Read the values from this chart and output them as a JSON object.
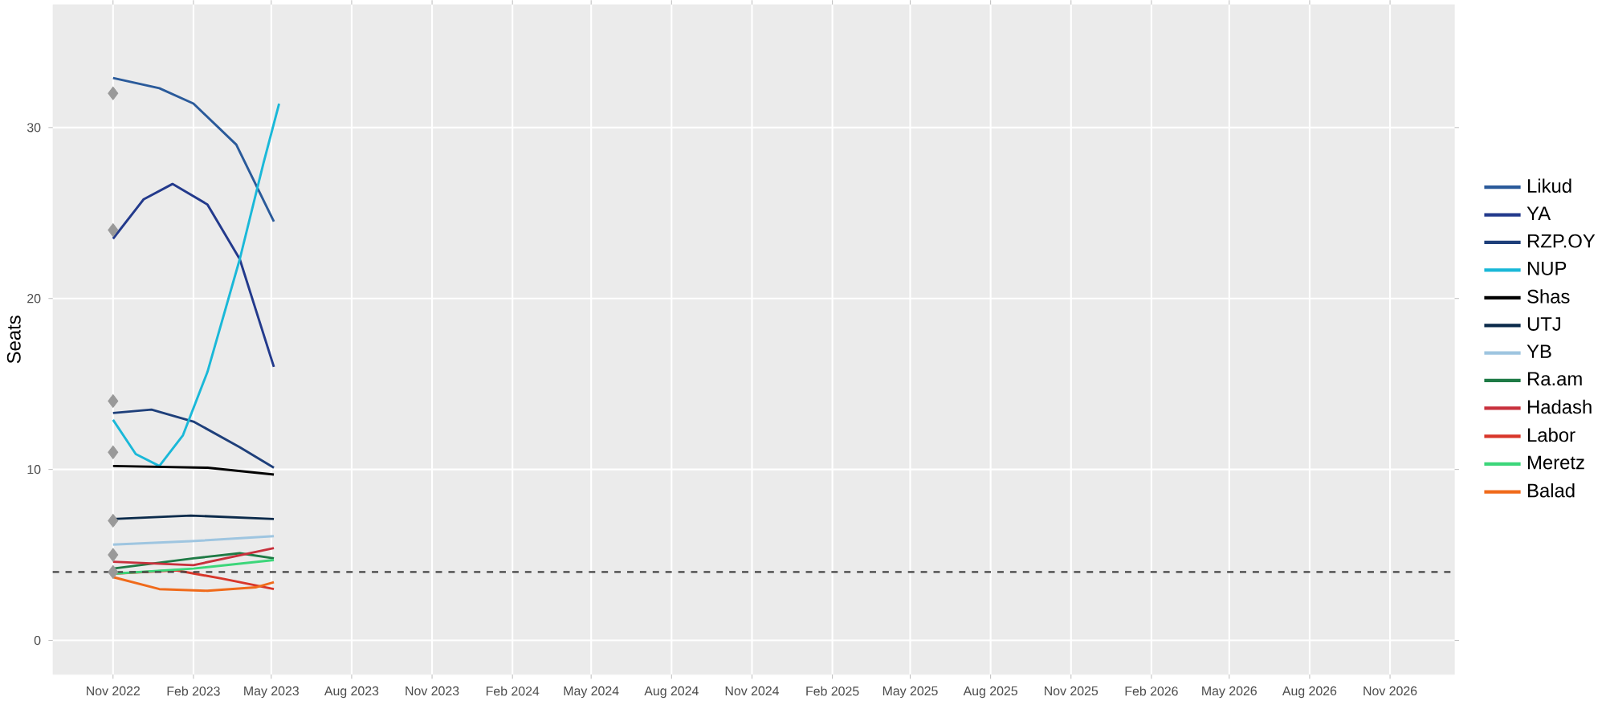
{
  "chart_data": {
    "type": "line",
    "ylabel": "Seats",
    "xlim": [
      "2022-08-24",
      "2027-01-14"
    ],
    "ylim": [
      -2,
      37.2
    ],
    "yticks": [
      0,
      10,
      20,
      30
    ],
    "xticks": [
      {
        "value": "2022-11-01",
        "label": "Nov 2022"
      },
      {
        "value": "2023-02-01",
        "label": "Feb 2023"
      },
      {
        "value": "2023-05-01",
        "label": "May 2023"
      },
      {
        "value": "2023-08-01",
        "label": "Aug 2023"
      },
      {
        "value": "2023-11-01",
        "label": "Nov 2023"
      },
      {
        "value": "2024-02-01",
        "label": "Feb 2024"
      },
      {
        "value": "2024-05-01",
        "label": "May 2024"
      },
      {
        "value": "2024-08-01",
        "label": "Aug 2024"
      },
      {
        "value": "2024-11-01",
        "label": "Nov 2024"
      },
      {
        "value": "2025-02-01",
        "label": "Feb 2025"
      },
      {
        "value": "2025-05-01",
        "label": "May 2025"
      },
      {
        "value": "2025-08-01",
        "label": "Aug 2025"
      },
      {
        "value": "2025-11-01",
        "label": "Nov 2025"
      },
      {
        "value": "2026-02-01",
        "label": "Feb 2026"
      },
      {
        "value": "2026-05-01",
        "label": "May 2026"
      },
      {
        "value": "2026-08-01",
        "label": "Aug 2026"
      },
      {
        "value": "2026-11-01",
        "label": "Nov 2026"
      }
    ],
    "grid": true,
    "legend": "right",
    "line_style": "solid",
    "marker": "none",
    "ref_lines": [
      {
        "axis": "y",
        "value": 4,
        "color": "#444444",
        "line_style": "dashed"
      }
    ],
    "series": [
      {
        "name": "Likud",
        "color": "#2a5a9a",
        "x": [
          "2022-11-01",
          "2022-12-24",
          "2023-02-01",
          "2023-03-22",
          "2023-05-04"
        ],
        "values": [
          32.9,
          32.3,
          31.4,
          29.0,
          24.5
        ]
      },
      {
        "name": "YA",
        "color": "#233a8c",
        "x": [
          "2022-11-01",
          "2022-12-06",
          "2023-01-08",
          "2023-02-17",
          "2023-03-26",
          "2023-05-04"
        ],
        "values": [
          23.5,
          25.8,
          26.7,
          25.5,
          22.3,
          16.0
        ]
      },
      {
        "name": "RZP.OY",
        "color": "#1e3f7a",
        "x": [
          "2022-11-01",
          "2022-12-15",
          "2023-02-01",
          "2023-03-26",
          "2023-05-04"
        ],
        "values": [
          13.3,
          13.5,
          12.8,
          11.3,
          10.1
        ]
      },
      {
        "name": "NUP",
        "color": "#1ab8d8",
        "x": [
          "2022-11-01",
          "2022-11-27",
          "2022-12-24",
          "2023-01-20",
          "2023-02-17",
          "2023-03-26",
          "2023-04-22",
          "2023-05-10"
        ],
        "values": [
          12.9,
          10.9,
          10.2,
          12.0,
          15.7,
          22.3,
          27.9,
          31.4
        ]
      },
      {
        "name": "Shas",
        "color": "#000000",
        "x": [
          "2022-11-01",
          "2023-02-17",
          "2023-05-04"
        ],
        "values": [
          10.2,
          10.1,
          9.7
        ]
      },
      {
        "name": "UTJ",
        "color": "#0b2a4a",
        "x": [
          "2022-11-01",
          "2023-01-29",
          "2023-05-04"
        ],
        "values": [
          7.1,
          7.3,
          7.1
        ]
      },
      {
        "name": "YB",
        "color": "#9ec5e0",
        "x": [
          "2022-11-01",
          "2023-01-29",
          "2023-05-04"
        ],
        "values": [
          5.6,
          5.8,
          6.1
        ]
      },
      {
        "name": "Ra.am",
        "color": "#1e7a45",
        "x": [
          "2022-11-01",
          "2023-02-01",
          "2023-03-26",
          "2023-05-04"
        ],
        "values": [
          4.2,
          4.8,
          5.1,
          4.8
        ]
      },
      {
        "name": "Hadash",
        "color": "#c8303c",
        "x": [
          "2022-11-01",
          "2023-02-01",
          "2023-05-04"
        ],
        "values": [
          4.6,
          4.4,
          5.4
        ]
      },
      {
        "name": "Labor",
        "color": "#d8362a",
        "x": [
          "2022-11-01",
          "2023-01-12",
          "2023-03-07",
          "2023-05-04"
        ],
        "values": [
          3.9,
          4.1,
          3.6,
          3.0
        ]
      },
      {
        "name": "Meretz",
        "color": "#3cd67a",
        "x": [
          "2022-11-01",
          "2023-02-01",
          "2023-05-04"
        ],
        "values": [
          3.9,
          4.2,
          4.7
        ]
      },
      {
        "name": "Balad",
        "color": "#f06a1a",
        "x": [
          "2022-11-01",
          "2022-12-24",
          "2023-02-17",
          "2023-04-13",
          "2023-05-04"
        ],
        "values": [
          3.7,
          3.0,
          2.9,
          3.1,
          3.4
        ]
      },
      {
        "type": "scatter",
        "marker": "diamond",
        "color": "#999999",
        "x": [
          "2022-11-01",
          "2022-11-01",
          "2022-11-01",
          "2022-11-01",
          "2022-11-01",
          "2022-11-01",
          "2022-11-01"
        ],
        "values": [
          32,
          24,
          14,
          11,
          7,
          5,
          4
        ]
      }
    ]
  }
}
